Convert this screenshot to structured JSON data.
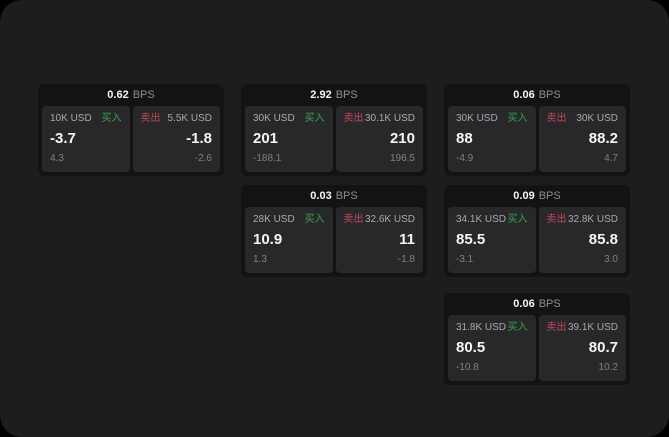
{
  "colors": {
    "window_bg": "#1d1d1f",
    "card_bg": "#131314",
    "panel_bg": "#28282a",
    "text_primary": "#f5f5f6",
    "text_label": "#aaaaae",
    "text_muted": "#8f8f93",
    "text_sub": "#818185",
    "buy_green": "#35a74f",
    "sell_red": "#c14a58"
  },
  "labels": {
    "buy": "买入",
    "sell": "卖出",
    "bps": "BPS"
  },
  "cards": [
    {
      "col": 0,
      "row": 0,
      "spread": "0.62",
      "buy": {
        "size": "10K USD",
        "price": "-3.7",
        "sub": "4.3"
      },
      "sell": {
        "size": "5.5K USD",
        "price": "-1.8",
        "sub": "-2.6"
      }
    },
    {
      "col": 1,
      "row": 0,
      "spread": "2.92",
      "buy": {
        "size": "30K USD",
        "price": "201",
        "sub": "-188.1"
      },
      "sell": {
        "size": "30.1K USD",
        "price": "210",
        "sub": "196.5"
      }
    },
    {
      "col": 2,
      "row": 0,
      "spread": "0.06",
      "buy": {
        "size": "30K USD",
        "price": "88",
        "sub": "-4.9"
      },
      "sell": {
        "size": "30K USD",
        "price": "88.2",
        "sub": "4.7"
      }
    },
    {
      "col": 1,
      "row": 1,
      "spread": "0.03",
      "buy": {
        "size": "28K USD",
        "price": "10.9",
        "sub": "1.3"
      },
      "sell": {
        "size": "32.6K USD",
        "price": "11",
        "sub": "-1.8"
      }
    },
    {
      "col": 2,
      "row": 1,
      "spread": "0.09",
      "buy": {
        "size": "34.1K USD",
        "price": "85.5",
        "sub": "-3.1"
      },
      "sell": {
        "size": "32.8K USD",
        "price": "85.8",
        "sub": "3.0"
      }
    },
    {
      "col": 2,
      "row": 2,
      "spread": "0.06",
      "buy": {
        "size": "31.8K USD",
        "price": "80.5",
        "sub": "-10.8"
      },
      "sell": {
        "size": "39.1K USD",
        "price": "80.7",
        "sub": "10.2"
      }
    }
  ]
}
